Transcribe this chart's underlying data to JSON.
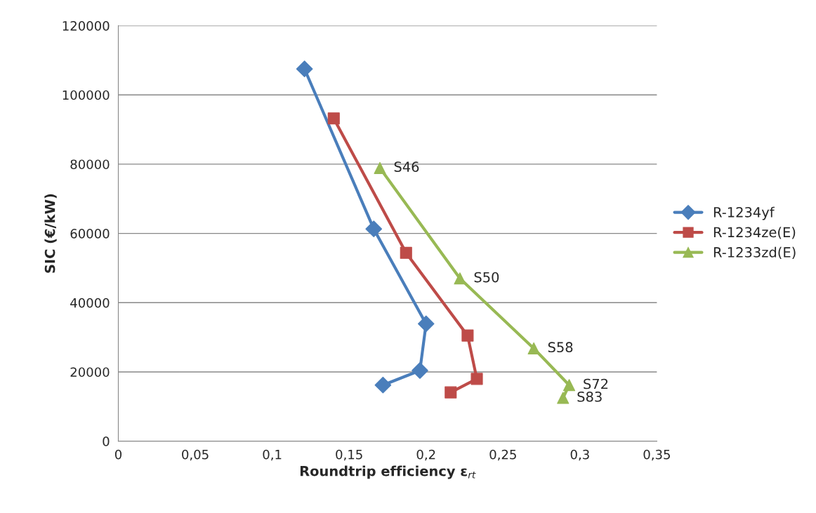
{
  "chart_data": {
    "type": "line",
    "xlabel": "Roundtrip efficiency ε$_{rt}$",
    "ylabel": "SIC (€/kW)",
    "xlim": [
      0,
      0.35
    ],
    "xticks": [
      0,
      {
        "value": 0.05,
        "label": "0,05"
      },
      {
        "value": 0.1,
        "label": "0,1"
      },
      {
        "value": 0.15,
        "label": "0,15"
      },
      {
        "value": 0.2,
        "label": "0,2"
      },
      {
        "value": 0.25,
        "label": "0,25"
      },
      {
        "value": 0.3,
        "label": "0,3"
      },
      {
        "value": 0.35,
        "label": "0,35"
      }
    ],
    "ylim": [
      0,
      120000
    ],
    "yticks": [
      0,
      20000,
      40000,
      60000,
      80000,
      100000,
      120000
    ],
    "grid": "y",
    "legend": "right",
    "series": [
      {
        "name": "R-1234yf",
        "color": "#4a7ebb",
        "marker": "diamond",
        "x": [
          0.121,
          0.166,
          0.2,
          0.196,
          0.172
        ],
        "values": [
          107500,
          61300,
          33900,
          20400,
          16200
        ]
      },
      {
        "name": "R-1234ze(E)",
        "color": "#be4b48",
        "marker": "square",
        "x": [
          0.14,
          0.187,
          0.227,
          0.233,
          0.216
        ],
        "values": [
          93200,
          54400,
          30500,
          18000,
          14100
        ]
      },
      {
        "name": "R-1233zd(E)",
        "color": "#98b954",
        "marker": "triangle",
        "x": [
          0.17,
          0.222,
          0.27,
          0.293,
          0.289
        ],
        "values": [
          78900,
          47000,
          26800,
          16200,
          12500
        ]
      }
    ],
    "annotations": [
      {
        "text": "S46",
        "x": 0.17,
        "y": 78900
      },
      {
        "text": "S50",
        "x": 0.222,
        "y": 47000
      },
      {
        "text": "S58",
        "x": 0.27,
        "y": 26800
      },
      {
        "text": "S72",
        "x": 0.293,
        "y": 16200
      },
      {
        "text": "S83",
        "x": 0.289,
        "y": 12500
      }
    ]
  }
}
